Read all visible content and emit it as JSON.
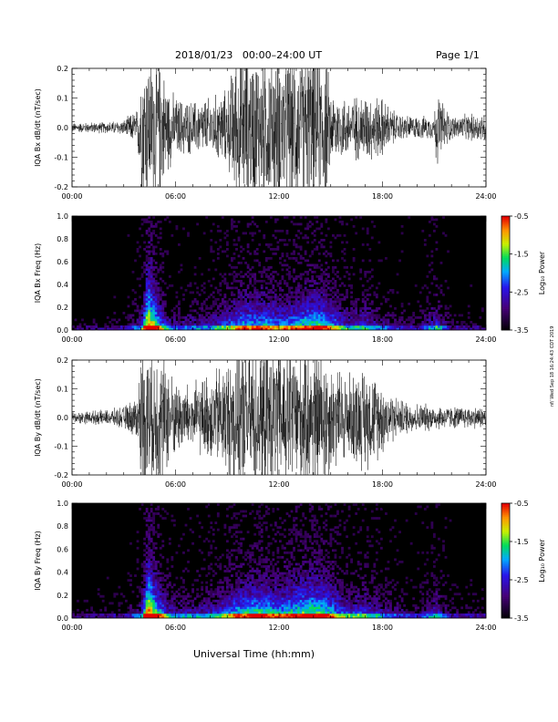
{
  "header": {
    "date_range": "2018/01/23   00:00–24:00 UT",
    "page": "Page 1/1"
  },
  "xaxis_title": "Universal Time (hh:mm)",
  "side_stamp": "nf/ Wed Sep 18 16:24:43 CDT 2019",
  "chart_data": [
    {
      "type": "line",
      "ylabel": "IQA Bx dB/dt (nT/sec)",
      "x_ticks": [
        "00:00",
        "06:00",
        "12:00",
        "18:00",
        "24:00"
      ],
      "x_hours": [
        0,
        6,
        12,
        18,
        24
      ],
      "ylim": [
        -0.2,
        0.2
      ],
      "y_ticks": [
        "-0.2",
        "-0.1",
        "0.0",
        "0.1",
        "0.2"
      ],
      "y_values": [
        -0.2,
        -0.1,
        0.0,
        0.1,
        0.2
      ],
      "envelope": {
        "hour": [
          0,
          1,
          2,
          3,
          3.8,
          4.0,
          4.5,
          5.0,
          5.5,
          6,
          7,
          8,
          9,
          9.5,
          10,
          11,
          12,
          13,
          14,
          14.7,
          15,
          16,
          17,
          18,
          18.5,
          19,
          20,
          21,
          21.1,
          22,
          23,
          24
        ],
        "amplitude": [
          0.012,
          0.014,
          0.015,
          0.02,
          0.05,
          0.2,
          0.2,
          0.2,
          0.12,
          0.08,
          0.07,
          0.08,
          0.1,
          0.2,
          0.2,
          0.2,
          0.2,
          0.2,
          0.2,
          0.2,
          0.1,
          0.08,
          0.09,
          0.08,
          0.05,
          0.035,
          0.03,
          0.03,
          0.1,
          0.03,
          0.035,
          0.04
        ]
      }
    },
    {
      "type": "heatmap",
      "ylabel": "IQA Bx Freq (Hz)",
      "x_ticks": [
        "00:00",
        "06:00",
        "12:00",
        "18:00",
        "24:00"
      ],
      "x_hours": [
        0,
        6,
        12,
        18,
        24
      ],
      "ylim": [
        0.0,
        1.0
      ],
      "y_ticks": [
        "0.0",
        "0.2",
        "0.4",
        "0.6",
        "0.8",
        "1.0"
      ],
      "y_values": [
        0.0,
        0.2,
        0.4,
        0.6,
        0.8,
        1.0
      ],
      "colorbar": {
        "label": "Log₁₀ Power",
        "range": [
          -3.5,
          -0.5
        ],
        "ticks": [
          "-0.5",
          "-1.5",
          "-2.5",
          "-3.5"
        ],
        "tick_values": [
          -0.5,
          -1.5,
          -2.5,
          -3.5
        ]
      },
      "activity": {
        "hour": [
          0,
          3,
          4.0,
          4.4,
          5.5,
          6,
          8,
          9.5,
          10,
          11,
          12,
          13,
          14,
          14.7,
          16,
          17,
          18,
          20,
          21.1,
          22,
          24
        ],
        "level": [
          0.05,
          0.1,
          0.3,
          1.0,
          0.35,
          0.25,
          0.3,
          0.55,
          0.6,
          0.6,
          0.55,
          0.6,
          0.7,
          0.65,
          0.35,
          0.4,
          0.25,
          0.12,
          0.4,
          0.1,
          0.08
        ]
      }
    },
    {
      "type": "line",
      "ylabel": "IQA By dB/dt (nT/sec)",
      "x_ticks": [
        "00:00",
        "06:00",
        "12:00",
        "18:00",
        "24:00"
      ],
      "x_hours": [
        0,
        6,
        12,
        18,
        24
      ],
      "ylim": [
        -0.2,
        0.2
      ],
      "y_ticks": [
        "-0.2",
        "-0.1",
        "0.0",
        "0.1",
        "0.2"
      ],
      "y_values": [
        -0.2,
        -0.1,
        0.0,
        0.1,
        0.2
      ],
      "envelope": {
        "hour": [
          0,
          1,
          2,
          3,
          3.8,
          4.0,
          4.5,
          5.0,
          5.5,
          6,
          7,
          8,
          9,
          9.5,
          10,
          11,
          12,
          13,
          14,
          14.7,
          15,
          16,
          17,
          18,
          18.5,
          19,
          20,
          21,
          22,
          23,
          24
        ],
        "amplitude": [
          0.015,
          0.018,
          0.02,
          0.03,
          0.06,
          0.2,
          0.2,
          0.2,
          0.15,
          0.1,
          0.09,
          0.12,
          0.16,
          0.2,
          0.2,
          0.2,
          0.2,
          0.2,
          0.2,
          0.2,
          0.15,
          0.12,
          0.14,
          0.1,
          0.07,
          0.05,
          0.04,
          0.035,
          0.03,
          0.03,
          0.03
        ]
      }
    },
    {
      "type": "heatmap",
      "ylabel": "IQA By Freq (Hz)",
      "x_ticks": [
        "00:00",
        "06:00",
        "12:00",
        "18:00",
        "24:00"
      ],
      "x_hours": [
        0,
        6,
        12,
        18,
        24
      ],
      "ylim": [
        0.0,
        1.0
      ],
      "y_ticks": [
        "0.0",
        "0.2",
        "0.4",
        "0.6",
        "0.8",
        "1.0"
      ],
      "y_values": [
        0.0,
        0.2,
        0.4,
        0.6,
        0.8,
        1.0
      ],
      "colorbar": {
        "label": "Log₁₀ Power",
        "range": [
          -3.5,
          -0.5
        ],
        "ticks": [
          "-0.5",
          "-1.5",
          "-2.5",
          "-3.5"
        ],
        "tick_values": [
          -0.5,
          -1.5,
          -2.5,
          -3.5
        ]
      },
      "activity": {
        "hour": [
          0,
          3,
          4.0,
          4.4,
          5.5,
          6,
          8,
          9.5,
          10,
          11,
          12,
          13,
          14,
          14.7,
          16,
          17,
          18,
          20,
          21.1,
          22,
          24
        ],
        "level": [
          0.05,
          0.1,
          0.3,
          1.0,
          0.4,
          0.3,
          0.35,
          0.6,
          0.65,
          0.7,
          0.6,
          0.7,
          0.75,
          0.7,
          0.4,
          0.45,
          0.3,
          0.15,
          0.4,
          0.12,
          0.1
        ]
      }
    }
  ]
}
